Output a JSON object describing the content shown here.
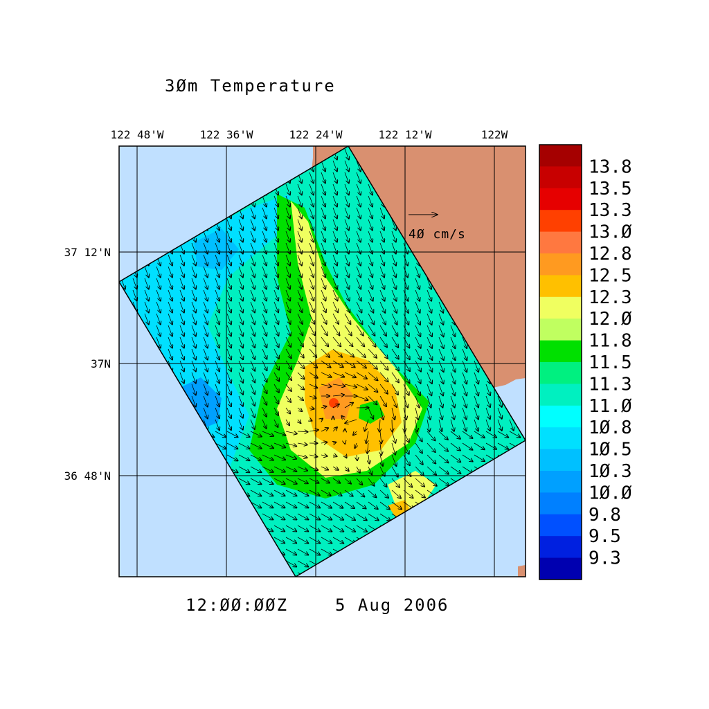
{
  "title": "3Øm Temperature",
  "timestamp": {
    "time": "12:ØØ:ØØZ",
    "date": "5 Aug 2006"
  },
  "longitude_labels": [
    "122 48'W",
    "122 36'W",
    "122 24'W",
    "122 12'W",
    "122W"
  ],
  "latitude_labels": [
    "37 12'N",
    "37N",
    "36 48'N"
  ],
  "reference_vector": {
    "label": "4Ø cm/s",
    "speed_cm_s": 40
  },
  "colorbar": {
    "unit_hint": "",
    "levels": [
      {
        "label": "13.8",
        "color": "#a50000"
      },
      {
        "label": "13.5",
        "color": "#c80000"
      },
      {
        "label": "13.3",
        "color": "#e60000"
      },
      {
        "label": "13.Ø",
        "color": "#ff4000"
      },
      {
        "label": "12.8",
        "color": "#ff7840"
      },
      {
        "label": "12.5",
        "color": "#ff9a20"
      },
      {
        "label": "12.3",
        "color": "#ffc000"
      },
      {
        "label": "12.Ø",
        "color": "#f0ff60"
      },
      {
        "label": "11.8",
        "color": "#c0ff60"
      },
      {
        "label": "11.5",
        "color": "#00e000"
      },
      {
        "label": "11.3",
        "color": "#00f080"
      },
      {
        "label": "11.Ø",
        "color": "#00f0c0"
      },
      {
        "label": "1Ø.8",
        "color": "#00ffff"
      },
      {
        "label": "1Ø.5",
        "color": "#00e0ff"
      },
      {
        "label": "1Ø.3",
        "color": "#00c0ff"
      },
      {
        "label": "1Ø.Ø",
        "color": "#00a0ff"
      },
      {
        "label": "9.8",
        "color": "#0080ff"
      },
      {
        "label": "9.5",
        "color": "#0050ff"
      },
      {
        "label": "9.3",
        "color": "#0020e0"
      },
      {
        "label": "",
        "color": "#0000b0"
      }
    ]
  },
  "colors": {
    "ocean": "#c0e0ff",
    "land": "#d99070",
    "frame": "#000000"
  }
}
